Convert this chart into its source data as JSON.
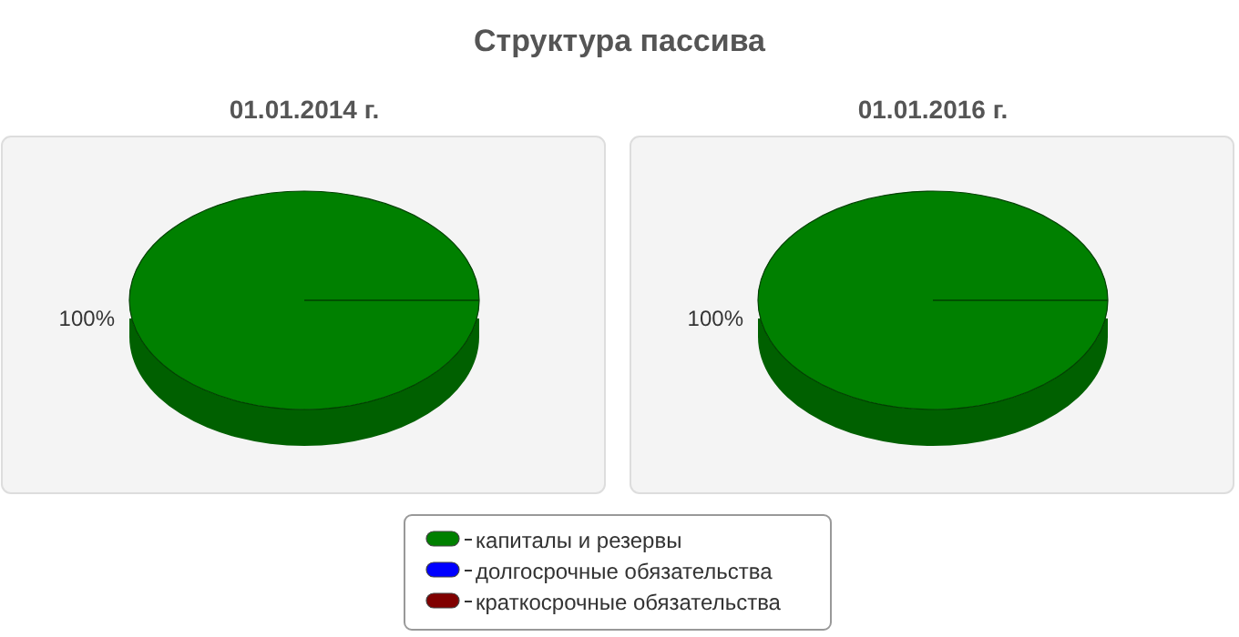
{
  "chart_data": [
    {
      "type": "pie",
      "title": "Структура пассива",
      "subtitle": "01.01.2014 г.",
      "categories": [
        "капиталы и резервы",
        "долгосрочные обязательства",
        "краткосрочные обязательства"
      ],
      "values": [
        100,
        0,
        0
      ],
      "colors": [
        "#008000",
        "#0000ff",
        "#800000"
      ],
      "value_labels": [
        "100%",
        null,
        null
      ],
      "legend": "bottom"
    },
    {
      "type": "pie",
      "subtitle": "01.01.2016 г.",
      "categories": [
        null,
        null,
        null
      ],
      "values": [
        100,
        0,
        0
      ],
      "colors": [
        "#008000",
        "#0000ff",
        "#800000"
      ],
      "value_labels": [
        "100%",
        null,
        null
      ]
    }
  ]
}
